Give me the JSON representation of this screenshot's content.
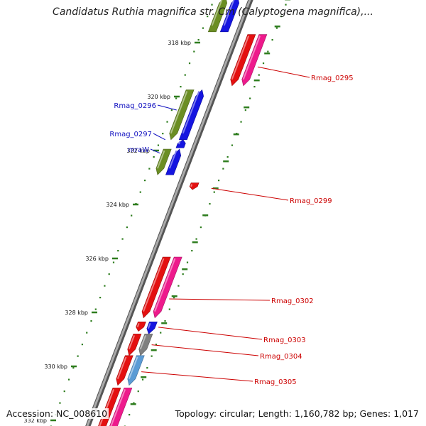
{
  "title": "Candidatus Ruthia magnifica str. Cm (Calyptogena magnifica),...",
  "footer": {
    "accession": "Accession: NC_008610",
    "topology": "Topology: circular; Length: 1,160,782 bp; Genes: 1,017"
  },
  "colors": {
    "backbone": "#888888",
    "ticks": "#2e7d1e",
    "left_labels": "#1010c0",
    "right_labels": "#cc0000"
  },
  "scale": {
    "unit": "kbp",
    "ticks": [
      {
        "kbp": 318,
        "label": "318 kbp"
      },
      {
        "kbp": 320,
        "label": "320 kbp"
      },
      {
        "kbp": 322,
        "label": "322 kbp"
      },
      {
        "kbp": 324,
        "label": "324 kbp"
      },
      {
        "kbp": 326,
        "label": "326 kbp"
      },
      {
        "kbp": 328,
        "label": "328 kbp"
      },
      {
        "kbp": 330,
        "label": "330 kbp"
      },
      {
        "kbp": 332,
        "label": "332 kbp"
      }
    ]
  },
  "genes": [
    {
      "start": 316.3,
      "end": 317.6,
      "lane": "L1",
      "color": "#6b8e23",
      "strand": "+"
    },
    {
      "start": 316.3,
      "end": 317.6,
      "lane": "L2",
      "color": "#1515e0",
      "strand": "+"
    },
    {
      "start": 317.7,
      "end": 319.6,
      "lane": "R1",
      "color": "#e41010",
      "strand": "-"
    },
    {
      "start": 317.7,
      "end": 319.6,
      "lane": "R2",
      "color": "#ee1a8c",
      "strand": "-"
    },
    {
      "start": 319.75,
      "end": 321.6,
      "lane": "L1",
      "color": "#6b8e23",
      "strand": "-"
    },
    {
      "start": 319.75,
      "end": 321.6,
      "lane": "L2",
      "color": "#1515e0",
      "strand": "+"
    },
    {
      "start": 321.6,
      "end": 321.9,
      "lane": "L2",
      "color": "#1515e0",
      "strand": "+"
    },
    {
      "start": 321.95,
      "end": 322.9,
      "lane": "L1",
      "color": "#6b8e23",
      "strand": "-"
    },
    {
      "start": 321.95,
      "end": 322.9,
      "lane": "L2",
      "color": "#1515e0",
      "strand": "+"
    },
    {
      "start": 323.2,
      "end": 323.45,
      "lane": "R1",
      "color": "#e41010",
      "strand": "-"
    },
    {
      "start": 325.95,
      "end": 328.2,
      "lane": "R1",
      "color": "#e41010",
      "strand": "-"
    },
    {
      "start": 325.95,
      "end": 328.2,
      "lane": "R2",
      "color": "#ee1a8c",
      "strand": "-"
    },
    {
      "start": 328.35,
      "end": 328.7,
      "lane": "R1",
      "color": "#e41010",
      "strand": "-"
    },
    {
      "start": 328.35,
      "end": 328.8,
      "lane": "R2",
      "color": "#1515e0",
      "strand": "-"
    },
    {
      "start": 328.8,
      "end": 329.6,
      "lane": "R1",
      "color": "#e41010",
      "strand": "-"
    },
    {
      "start": 328.8,
      "end": 329.6,
      "lane": "R2",
      "color": "#808080",
      "strand": "-"
    },
    {
      "start": 329.6,
      "end": 330.7,
      "lane": "R1",
      "color": "#e41010",
      "strand": "-"
    },
    {
      "start": 329.6,
      "end": 330.7,
      "lane": "R2",
      "color": "#5b9bd5",
      "strand": "-"
    },
    {
      "start": 330.8,
      "end": 332.6,
      "lane": "R1",
      "color": "#e41010",
      "strand": "-"
    },
    {
      "start": 330.8,
      "end": 332.6,
      "lane": "R2",
      "color": "#ee1a8c",
      "strand": "-"
    }
  ],
  "labels_left": [
    {
      "text": "Rmag_0296",
      "at": 320.5
    },
    {
      "text": "Rmag_0297",
      "at": 321.6
    },
    {
      "text": "mraW",
      "at": 322.1
    }
  ],
  "labels_right": [
    {
      "text": "Rmag_0295",
      "at": 318.9
    },
    {
      "text": "Rmag_0299",
      "at": 323.4
    },
    {
      "text": "Rmag_0302",
      "at": 327.5
    },
    {
      "text": "Rmag_0303",
      "at": 328.55
    },
    {
      "text": "Rmag_0304",
      "at": 329.2
    },
    {
      "text": "Rmag_0305",
      "at": 330.2
    }
  ]
}
